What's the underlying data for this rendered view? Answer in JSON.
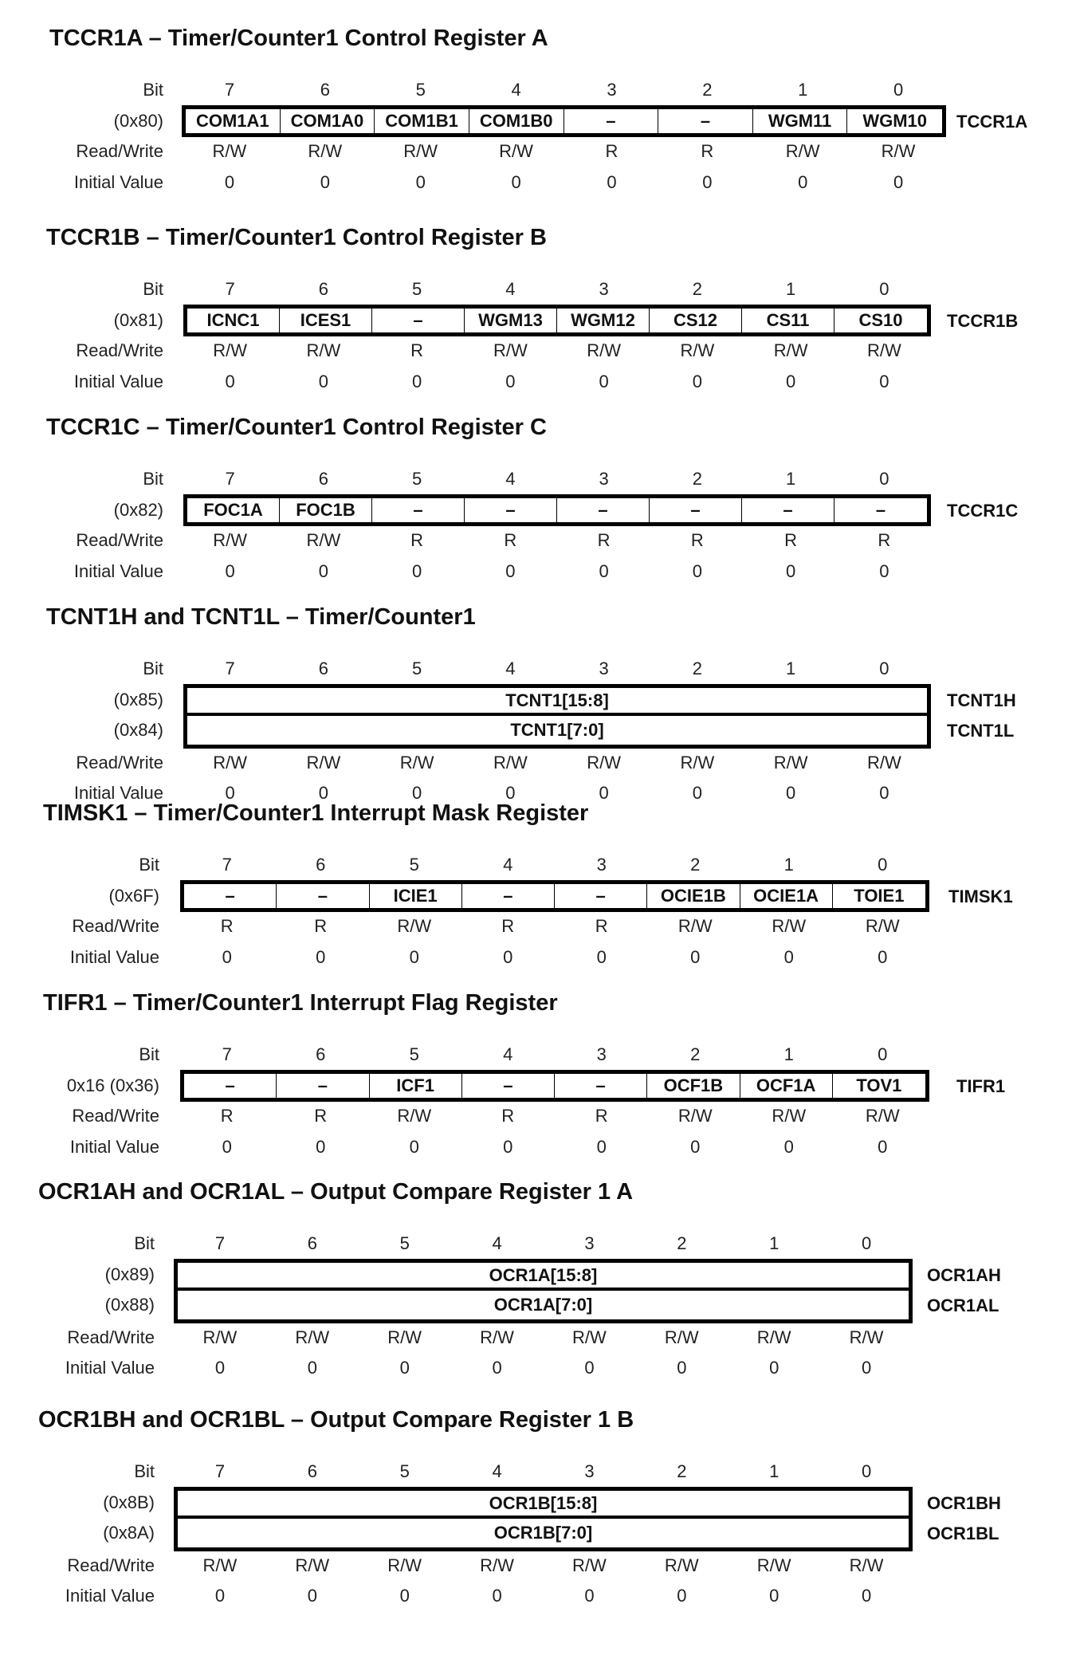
{
  "sections": [
    {
      "title": "TCCR1A – Timer/Counter1 Control Register A",
      "bit_label": "Bit",
      "bits": [
        "7",
        "6",
        "5",
        "4",
        "3",
        "2",
        "1",
        "0"
      ],
      "rows": [
        {
          "address": "(0x80)",
          "register": "TCCR1A",
          "fields": [
            "COM1A1",
            "COM1A0",
            "COM1B1",
            "COM1B0",
            "–",
            "–",
            "WGM11",
            "WGM10"
          ]
        }
      ],
      "rw_label": "Read/Write",
      "rw": [
        "R/W",
        "R/W",
        "R/W",
        "R/W",
        "R",
        "R",
        "R/W",
        "R/W"
      ],
      "init_label": "Initial Value",
      "init": [
        "0",
        "0",
        "0",
        "0",
        "0",
        "0",
        "0",
        "0"
      ]
    },
    {
      "title": "TCCR1B – Timer/Counter1 Control Register B",
      "bit_label": "Bit",
      "bits": [
        "7",
        "6",
        "5",
        "4",
        "3",
        "2",
        "1",
        "0"
      ],
      "rows": [
        {
          "address": "(0x81)",
          "register": "TCCR1B",
          "fields": [
            "ICNC1",
            "ICES1",
            "–",
            "WGM13",
            "WGM12",
            "CS12",
            "CS11",
            "CS10"
          ]
        }
      ],
      "rw_label": "Read/Write",
      "rw": [
        "R/W",
        "R/W",
        "R",
        "R/W",
        "R/W",
        "R/W",
        "R/W",
        "R/W"
      ],
      "init_label": "Initial Value",
      "init": [
        "0",
        "0",
        "0",
        "0",
        "0",
        "0",
        "0",
        "0"
      ]
    },
    {
      "title": "TCCR1C – Timer/Counter1 Control Register C",
      "bit_label": "Bit",
      "bits": [
        "7",
        "6",
        "5",
        "4",
        "3",
        "2",
        "1",
        "0"
      ],
      "rows": [
        {
          "address": "(0x82)",
          "register": "TCCR1C",
          "fields": [
            "FOC1A",
            "FOC1B",
            "–",
            "–",
            "–",
            "–",
            "–",
            "–"
          ]
        }
      ],
      "rw_label": "Read/Write",
      "rw": [
        "R/W",
        "R/W",
        "R",
        "R",
        "R",
        "R",
        "R",
        "R"
      ],
      "init_label": "Initial Value",
      "init": [
        "0",
        "0",
        "0",
        "0",
        "0",
        "0",
        "0",
        "0"
      ]
    },
    {
      "title": "TCNT1H and TCNT1L – Timer/Counter1",
      "bit_label": "Bit",
      "bits": [
        "7",
        "6",
        "5",
        "4",
        "3",
        "2",
        "1",
        "0"
      ],
      "rows": [
        {
          "address": "(0x85)",
          "register": "TCNT1H",
          "value": "TCNT1[15:8]"
        },
        {
          "address": "(0x84)",
          "register": "TCNT1L",
          "value": "TCNT1[7:0]"
        }
      ],
      "rw_label": "Read/Write",
      "rw": [
        "R/W",
        "R/W",
        "R/W",
        "R/W",
        "R/W",
        "R/W",
        "R/W",
        "R/W"
      ],
      "init_label": "Initial Value",
      "init": [
        "0",
        "0",
        "0",
        "0",
        "0",
        "0",
        "0",
        "0"
      ]
    },
    {
      "title": "TIMSK1 – Timer/Counter1 Interrupt Mask Register",
      "bit_label": "Bit",
      "bits": [
        "7",
        "6",
        "5",
        "4",
        "3",
        "2",
        "1",
        "0"
      ],
      "rows": [
        {
          "address": "(0x6F)",
          "register": "TIMSK1",
          "fields": [
            "–",
            "–",
            "ICIE1",
            "–",
            "–",
            "OCIE1B",
            "OCIE1A",
            "TOIE1"
          ]
        }
      ],
      "rw_label": "Read/Write",
      "rw": [
        "R",
        "R",
        "R/W",
        "R",
        "R",
        "R/W",
        "R/W",
        "R/W"
      ],
      "init_label": "Initial Value",
      "init": [
        "0",
        "0",
        "0",
        "0",
        "0",
        "0",
        "0",
        "0"
      ]
    },
    {
      "title": "TIFR1 – Timer/Counter1 Interrupt Flag Register",
      "bit_label": "Bit",
      "bits": [
        "7",
        "6",
        "5",
        "4",
        "3",
        "2",
        "1",
        "0"
      ],
      "rows": [
        {
          "address": "0x16 (0x36)",
          "register": "TIFR1",
          "fields": [
            "–",
            "–",
            "ICF1",
            "–",
            "–",
            "OCF1B",
            "OCF1A",
            "TOV1"
          ]
        }
      ],
      "rw_label": "Read/Write",
      "rw": [
        "R",
        "R",
        "R/W",
        "R",
        "R",
        "R/W",
        "R/W",
        "R/W"
      ],
      "init_label": "Initial Value",
      "init": [
        "0",
        "0",
        "0",
        "0",
        "0",
        "0",
        "0",
        "0"
      ]
    },
    {
      "title": "OCR1AH and OCR1AL – Output Compare Register 1 A",
      "bit_label": "Bit",
      "bits": [
        "7",
        "6",
        "5",
        "4",
        "3",
        "2",
        "1",
        "0"
      ],
      "rows": [
        {
          "address": "(0x89)",
          "register": "OCR1AH",
          "value": "OCR1A[15:8]"
        },
        {
          "address": "(0x88)",
          "register": "OCR1AL",
          "value": "OCR1A[7:0]"
        }
      ],
      "rw_label": "Read/Write",
      "rw": [
        "R/W",
        "R/W",
        "R/W",
        "R/W",
        "R/W",
        "R/W",
        "R/W",
        "R/W"
      ],
      "init_label": "Initial Value",
      "init": [
        "0",
        "0",
        "0",
        "0",
        "0",
        "0",
        "0",
        "0"
      ]
    },
    {
      "title": "OCR1BH and OCR1BL – Output Compare Register 1 B",
      "bit_label": "Bit",
      "bits": [
        "7",
        "6",
        "5",
        "4",
        "3",
        "2",
        "1",
        "0"
      ],
      "rows": [
        {
          "address": "(0x8B)",
          "register": "OCR1BH",
          "value": "OCR1B[15:8]"
        },
        {
          "address": "(0x8A)",
          "register": "OCR1BL",
          "value": "OCR1B[7:0]"
        }
      ],
      "rw_label": "Read/Write",
      "rw": [
        "R/W",
        "R/W",
        "R/W",
        "R/W",
        "R/W",
        "R/W",
        "R/W",
        "R/W"
      ],
      "init_label": "Initial Value",
      "init": [
        "0",
        "0",
        "0",
        "0",
        "0",
        "0",
        "0",
        "0"
      ]
    }
  ]
}
